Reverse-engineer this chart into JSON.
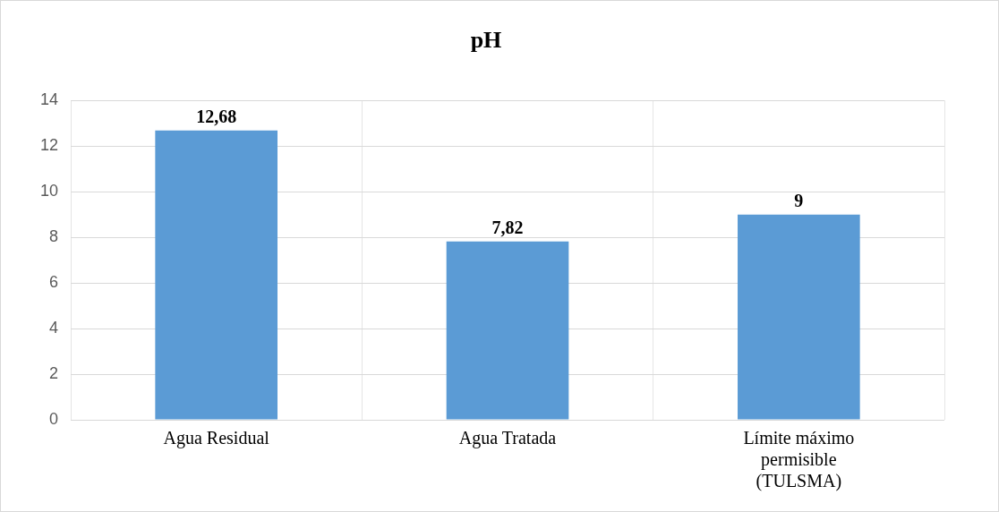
{
  "chart_data": {
    "type": "bar",
    "title": "pH",
    "categories": [
      "Agua Residual",
      "Agua Tratada",
      "Límite máximo permisible (TULSMA)"
    ],
    "values": [
      12.68,
      7.82,
      9
    ],
    "value_labels": [
      "12,68",
      "7,82",
      "9"
    ],
    "color": "#5b9bd5",
    "ylim": [
      0,
      14
    ],
    "yticks": [
      0,
      2,
      4,
      6,
      8,
      10,
      12,
      14
    ],
    "grid": true,
    "legend": false
  }
}
